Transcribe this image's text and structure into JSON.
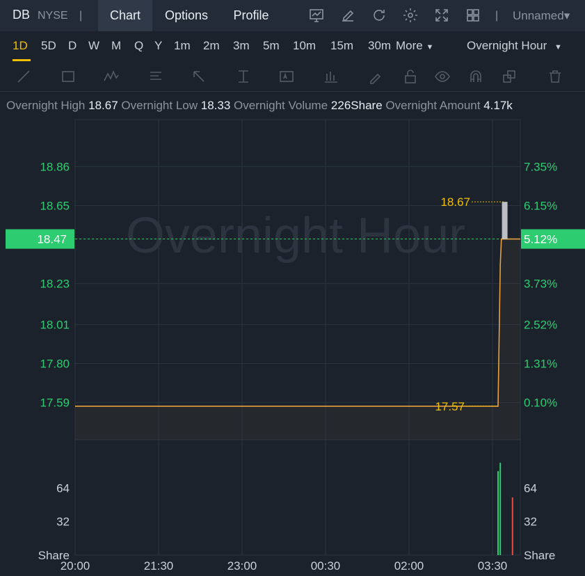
{
  "header": {
    "symbol": "DB",
    "exchange": "NYSE",
    "separator": "|",
    "tabs": [
      {
        "label": "Chart",
        "active": true
      },
      {
        "label": "Options",
        "active": false
      },
      {
        "label": "Profile",
        "active": false
      }
    ],
    "tool_icons": [
      "chart-indicator-icon",
      "draw-edit-icon",
      "refresh-icon",
      "settings-gear-icon",
      "fullscreen-icon",
      "layout-grid-icon"
    ],
    "workspace": "Unnamed▾"
  },
  "timeframes": {
    "items": [
      "1D",
      "5D",
      "D",
      "W",
      "M",
      "Q",
      "Y",
      "1m",
      "2m",
      "3m",
      "5m",
      "10m",
      "15m",
      "30m"
    ],
    "active": "1D",
    "more": "More",
    "session": "Overnight Hour"
  },
  "drawing_tools": [
    "trend-line-icon",
    "rectangle-icon",
    "pattern-icon",
    "text-note-icon",
    "arrow-icon",
    "measure-icon",
    "text-label-icon",
    "bar-pattern-icon",
    "brush-icon",
    "lock-icon",
    "eye-icon",
    "magnet-icon",
    "layers-icon",
    "trash-icon"
  ],
  "stats": [
    {
      "label": "Overnight High",
      "value": "18.67"
    },
    {
      "label": "Overnight Low",
      "value": "18.33"
    },
    {
      "label": "Overnight Volume",
      "value": "226Share"
    },
    {
      "label": "Overnight Amount",
      "value": "4.17k"
    }
  ],
  "chart_data": {
    "type": "line",
    "watermark": "Overnight Hour",
    "price_axis": {
      "ticks": [
        "18.86",
        "18.65",
        "18.23",
        "18.01",
        "17.80",
        "17.59"
      ],
      "range": [
        17.39,
        19.0
      ]
    },
    "percent_axis": {
      "ticks": [
        "7.35%",
        "6.15%",
        "3.73%",
        "2.52%",
        "1.31%",
        "0.10%"
      ]
    },
    "current_price": "18.47",
    "current_percent": "5.12%",
    "x_ticks": [
      "20:00",
      "21:30",
      "23:00",
      "00:30",
      "02:00",
      "03:30"
    ],
    "x_range_hours": [
      0,
      8
    ],
    "price_series": [
      [
        0.0,
        17.57
      ],
      [
        7.6,
        17.57
      ],
      [
        7.64,
        18.33
      ],
      [
        7.66,
        18.47
      ],
      [
        8.0,
        18.47
      ]
    ],
    "candle": {
      "t": 7.72,
      "open": 18.47,
      "high": 18.67,
      "low": 18.47,
      "close": 18.67
    },
    "annotations": [
      {
        "label": "18.67",
        "price": 18.67,
        "t": 7.7
      },
      {
        "label": "17.57",
        "price": 17.57,
        "t": 7.6
      }
    ],
    "volume_axis": {
      "ticks": [
        "64",
        "32"
      ],
      "unit": "Share",
      "range": [
        0,
        110
      ]
    },
    "volume_bars": [
      {
        "t": 7.6,
        "value": 80,
        "dir": "up"
      },
      {
        "t": 7.64,
        "value": 88,
        "dir": "up"
      },
      {
        "t": 7.86,
        "value": 55,
        "dir": "down"
      }
    ],
    "colors": {
      "up": "#2ecc71",
      "down": "#e74c3c",
      "line": "#e9a23b",
      "axis_text": "#2ecc71",
      "label": "#f0c000"
    }
  }
}
